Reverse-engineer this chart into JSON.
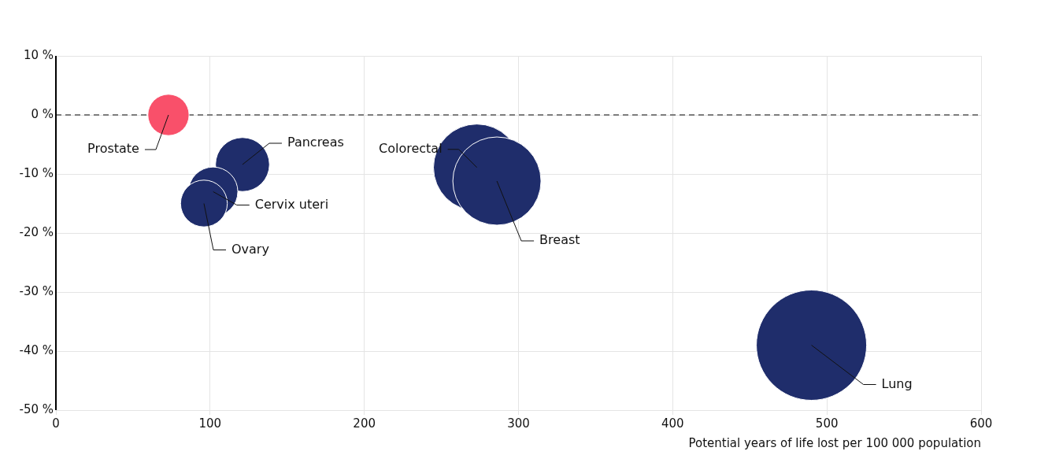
{
  "chart_data": {
    "type": "bubble",
    "xlabel": "Potential years of life lost per 100 000 population",
    "xlim": [
      0,
      600
    ],
    "xticks": [
      0,
      100,
      200,
      300,
      400,
      500,
      600
    ],
    "ylim": [
      -50,
      10
    ],
    "yticks": [
      {
        "value": -50,
        "label": "-50 %"
      },
      {
        "value": -40,
        "label": "-40 %"
      },
      {
        "value": -30,
        "label": "-30 %"
      },
      {
        "value": -20,
        "label": "-20 %"
      },
      {
        "value": -10,
        "label": "-10 %"
      },
      {
        "value": 0,
        "label": "0 %"
      },
      {
        "value": 10,
        "label": "10 %"
      }
    ],
    "grid": true,
    "legend": false,
    "ref_lines": [
      {
        "axis": "y",
        "value": 0,
        "color": "#555555",
        "line_style": "dashed"
      }
    ],
    "series": [
      {
        "name": "Prostate",
        "color": "#f9506a",
        "x": [
          73
        ],
        "values": [
          0
        ],
        "sizes": [
          0.14
        ]
      },
      {
        "name": "Pancreas",
        "color": "#1f2d6b",
        "x": [
          121
        ],
        "values": [
          -8.4
        ],
        "sizes": [
          0.24
        ]
      },
      {
        "name": "Cervix uteri",
        "color": "#1f2d6b",
        "x": [
          102
        ],
        "values": [
          -13
        ],
        "sizes": [
          0.2
        ]
      },
      {
        "name": "Ovary",
        "color": "#1f2d6b",
        "x": [
          96
        ],
        "values": [
          -15
        ],
        "sizes": [
          0.18
        ]
      },
      {
        "name": "Colorectal",
        "color": "#1f2d6b",
        "x": [
          273
        ],
        "values": [
          -8.9
        ],
        "sizes": [
          0.62
        ]
      },
      {
        "name": "Breast",
        "color": "#1f2d6b",
        "x": [
          286
        ],
        "values": [
          -11.2
        ],
        "sizes": [
          0.64
        ]
      },
      {
        "name": "Lung",
        "color": "#1f2d6b",
        "x": [
          490
        ],
        "values": [
          -39
        ],
        "sizes": [
          1
        ]
      }
    ]
  }
}
